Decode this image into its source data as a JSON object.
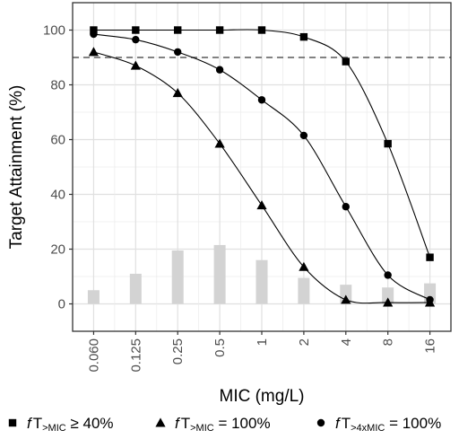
{
  "chart_data": {
    "type": "line",
    "xlabel": "MIC (mg/L)",
    "ylabel": "Target Attainment (%)",
    "categories": [
      "0.060",
      "0.125",
      "0.25",
      "0.5",
      "1",
      "2",
      "4",
      "8",
      "16"
    ],
    "ylim": [
      -10,
      110
    ],
    "yticks": [
      "0",
      "20",
      "40",
      "60",
      "80",
      "100"
    ],
    "grid": true,
    "reference_line": {
      "y": 90,
      "style": "dashed"
    },
    "bars": {
      "values": [
        5,
        11,
        19.5,
        21.5,
        16,
        9.5,
        7,
        6,
        7.5
      ],
      "color": "#d3d3d3"
    },
    "series": [
      {
        "marker": "square",
        "values": [
          100,
          100,
          100,
          100,
          100,
          97.5,
          88.5,
          58.5,
          17
        ]
      },
      {
        "marker": "triangle",
        "values": [
          92,
          87,
          77,
          58.5,
          36,
          13.5,
          1.5,
          0.5,
          0.5
        ]
      },
      {
        "marker": "circle",
        "values": [
          98.5,
          96.5,
          92,
          85.5,
          74.5,
          61.5,
          35.5,
          10.5,
          1.5
        ]
      }
    ],
    "legend": {
      "position": "bottom",
      "items": [
        {
          "marker": "square",
          "prefix": "f",
          "main": "T",
          "sub": ">MIC",
          "suffix": " ≥ 40%"
        },
        {
          "marker": "triangle",
          "prefix": "f",
          "main": "T",
          "sub": ">MIC",
          "suffix": " = 100%"
        },
        {
          "marker": "circle",
          "prefix": "f",
          "main": "T",
          "sub": ">4xMIC",
          "suffix": " = 100%"
        }
      ]
    },
    "colors": {
      "line": "#000000",
      "grid": "#ebebeb",
      "grid_major": "#e0e0e0",
      "axis": "#333333",
      "bar": "#d3d3d3",
      "dash": "#595959"
    }
  }
}
